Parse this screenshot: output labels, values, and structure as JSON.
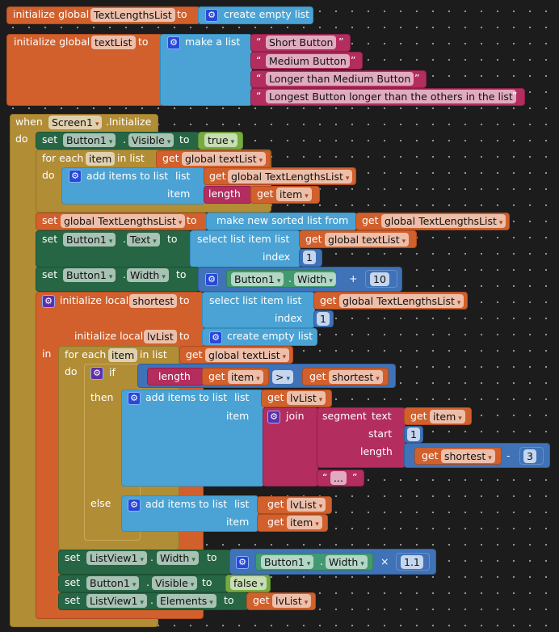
{
  "kw": {
    "init_global": "initialize global",
    "init_local": "initialize local",
    "to": "to",
    "set": "set",
    "get": "get",
    "dot": ".",
    "for_each": "for each",
    "in_list": "in list",
    "do": "do",
    "in": "in",
    "when": "when",
    "add_items": "add items to list",
    "list": "list",
    "item": "item",
    "index": "index",
    "select_list_item": "select list item",
    "create_empty": "create empty list",
    "make_list": "make a list",
    "make_sorted": "make new sorted list from",
    "length": "length",
    "if": "if",
    "then": "then",
    "else": "else",
    "join": "join",
    "segment": "segment",
    "text": "text",
    "start": "start",
    "length_param": "length",
    "quote_open": "“",
    "quote_close": "”",
    "gt": ">",
    "plus": "+",
    "minus": "-",
    "times": "×",
    "arrow": "▾"
  },
  "vars": {
    "lengths": "TextLengthsList",
    "textlist": "textList",
    "g_textlist": "global textList",
    "g_lengths": "global TextLengthsList",
    "item": "item",
    "shortest": "shortest",
    "lvlist": "lvList"
  },
  "strings": [
    "Short Button",
    "Medium Button",
    "Longer than Medium Button",
    "Longest Button longer than the others in the list"
  ],
  "ellipsis": "...",
  "components": {
    "screen": "Screen1",
    "event": ".Initialize",
    "button": "Button1",
    "listview": "ListView1"
  },
  "props": {
    "visible": "Visible",
    "text": "Text",
    "width": "Width",
    "elements": "Elements"
  },
  "values": {
    "true": "true",
    "false": "false",
    "one": "1",
    "ten": "10",
    "three": "3",
    "factor": "1.1"
  }
}
